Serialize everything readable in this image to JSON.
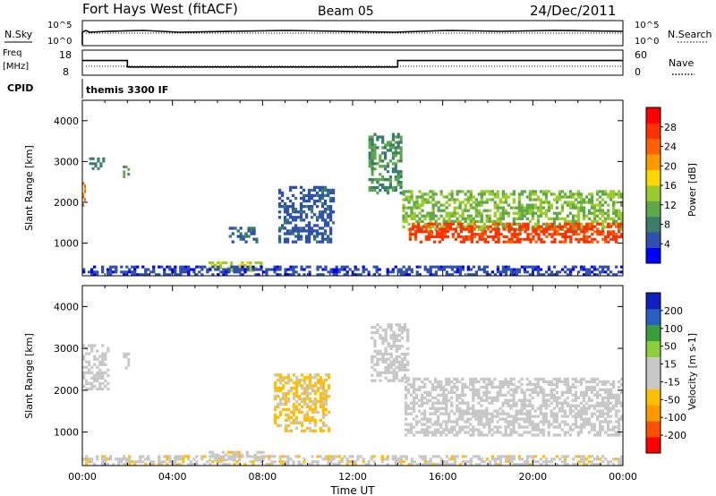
{
  "header": {
    "station": "Fort Hays West (fitACF)",
    "beam": "Beam 05",
    "date": "24/Dec/2011"
  },
  "status_panels": {
    "nsky_label": "N.Sky",
    "nsearch_label": "N.Search",
    "noise_ticks": [
      "10^5",
      "10^0"
    ],
    "freq_label_1": "Freq",
    "freq_label_2": "[MHz]",
    "freq_ticks": [
      "18",
      "8"
    ],
    "nave_label": "Nave",
    "nave_ticks": [
      "60",
      "0"
    ],
    "cpid_label": "CPID",
    "cpid_value": "themis 3300 IF",
    "frequency_mhz_steps": [
      {
        "from_hour": 0.0,
        "to_hour": 2.0,
        "value": 14
      },
      {
        "from_hour": 2.0,
        "to_hour": 14.0,
        "value": 11
      },
      {
        "from_hour": 14.0,
        "to_hour": 24.0,
        "value": 14
      }
    ]
  },
  "chart_data": [
    {
      "type": "heatmap",
      "title": "",
      "xlabel": "",
      "ylabel": "Slant Range [km]",
      "xlim": [
        0,
        24
      ],
      "ylim": [
        200,
        4500
      ],
      "y_ticks": [
        "4000",
        "3000",
        "2000",
        "1000"
      ],
      "colorbar": {
        "label": "Power [dB]",
        "ticks": [
          "28",
          "24",
          "20",
          "16",
          "12",
          "8",
          "4"
        ],
        "range": [
          0,
          30
        ],
        "colors": [
          "#0000ff",
          "#3050b0",
          "#3b7d6b",
          "#5fa84a",
          "#9ccc2a",
          "#ffd700",
          "#ff9900",
          "#ff6000",
          "#ff3000",
          "#ff0000"
        ]
      },
      "regions": [
        {
          "x": [
            0.0,
            0.15
          ],
          "range_km": [
            1900,
            2500
          ],
          "value": 22
        },
        {
          "x": [
            0.3,
            1.0
          ],
          "range_km": [
            2800,
            3100
          ],
          "value": 8
        },
        {
          "x": [
            1.8,
            2.1
          ],
          "range_km": [
            2600,
            2900
          ],
          "value": 9
        },
        {
          "x": [
            5.6,
            8.0
          ],
          "range_km": [
            300,
            550
          ],
          "value": 14
        },
        {
          "x": [
            6.5,
            7.8
          ],
          "range_km": [
            1000,
            1400
          ],
          "value": 6
        },
        {
          "x": [
            8.7,
            11.2
          ],
          "range_km": [
            1000,
            2400
          ],
          "value": 5
        },
        {
          "x": [
            12.7,
            14.2
          ],
          "range_km": [
            2200,
            3700
          ],
          "value": 9
        },
        {
          "x": [
            14.2,
            24.0
          ],
          "range_km": [
            1300,
            2300
          ],
          "value": 12
        },
        {
          "x": [
            14.5,
            24.0
          ],
          "range_km": [
            1000,
            1500
          ],
          "value": 25
        },
        {
          "x": [
            0.0,
            24.0
          ],
          "range_km": [
            200,
            450
          ],
          "value": 4
        }
      ]
    },
    {
      "type": "heatmap",
      "title": "",
      "xlabel": "Time UT",
      "ylabel": "Slant Range [km]",
      "xlim": [
        0,
        24
      ],
      "ylim": [
        200,
        4500
      ],
      "x_ticks": [
        "00:00",
        "04:00",
        "08:00",
        "12:00",
        "16:00",
        "20:00",
        "00:00"
      ],
      "y_ticks": [
        "4000",
        "3000",
        "2000",
        "1000"
      ],
      "colorbar": {
        "label": "Velocity [m s-1]",
        "ticks": [
          "200",
          "100",
          "50",
          "15",
          "-15",
          "-50",
          "-100",
          "-200"
        ],
        "range": [
          -250,
          250
        ],
        "colors": [
          "#ff0000",
          "#ff5000",
          "#ff9900",
          "#ffbf00",
          "#c8c8c8",
          "#c8c8c8",
          "#8ccf3c",
          "#3a9f3a",
          "#2860c0",
          "#1020c0"
        ]
      },
      "regions": [
        {
          "x": [
            0.0,
            1.2
          ],
          "range_km": [
            2000,
            3100
          ],
          "value": -20
        },
        {
          "x": [
            1.8,
            2.1
          ],
          "range_km": [
            2500,
            2900
          ],
          "value": 0
        },
        {
          "x": [
            5.6,
            8.2
          ],
          "range_km": [
            300,
            550
          ],
          "value": -40
        },
        {
          "x": [
            8.5,
            11.0
          ],
          "range_km": [
            1000,
            2400
          ],
          "value": -60
        },
        {
          "x": [
            12.8,
            14.5
          ],
          "range_km": [
            2200,
            3600
          ],
          "value": 0
        },
        {
          "x": [
            14.3,
            24.0
          ],
          "range_km": [
            900,
            2300
          ],
          "value": 0
        },
        {
          "x": [
            0.0,
            24.0
          ],
          "range_km": [
            200,
            450
          ],
          "value": -30
        }
      ]
    }
  ],
  "colors": {
    "axis": "#000000",
    "background": "#ffffff",
    "ground_scatter": "#c8c8c8"
  }
}
